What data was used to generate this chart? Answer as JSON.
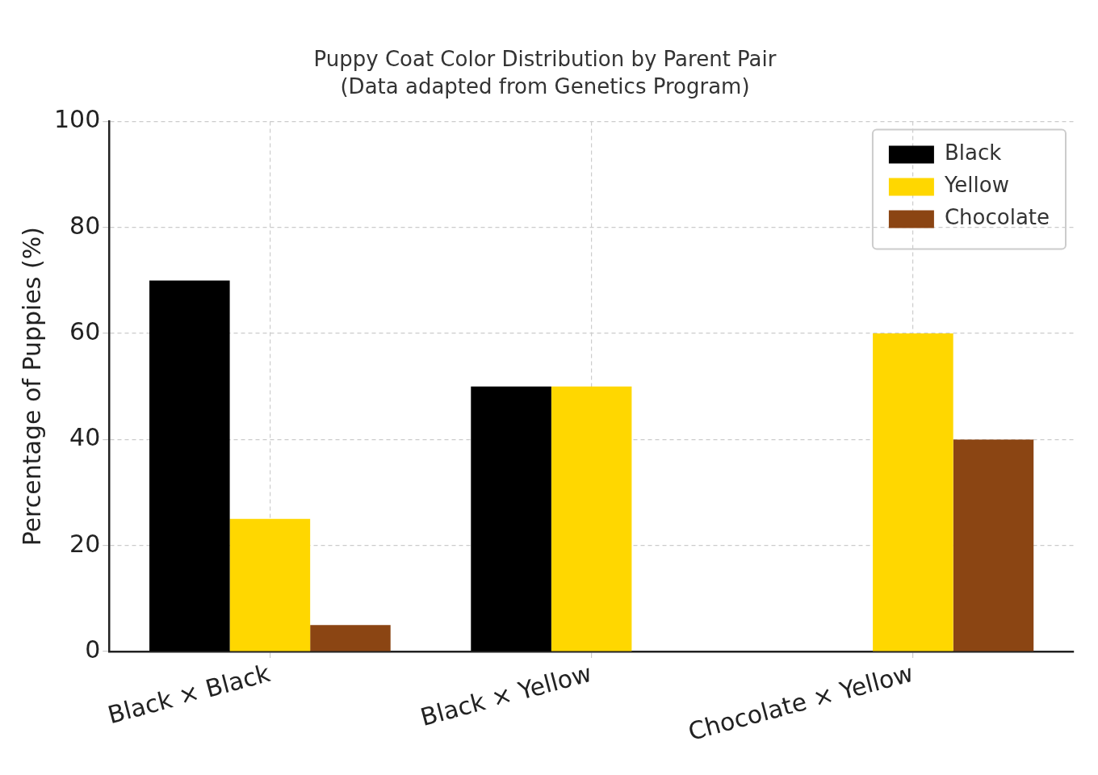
{
  "chart_data": {
    "type": "bar",
    "title": "Puppy Coat Color Distribution by Parent Pair",
    "subtitle": "(Data adapted from Genetics Program)",
    "ylabel": "Percentage of Puppies (%)",
    "categories": [
      "Black × Black",
      "Black × Yellow",
      "Chocolate × Yellow"
    ],
    "series": [
      {
        "name": "Black",
        "color": "#000000",
        "values": [
          70,
          50,
          0
        ]
      },
      {
        "name": "Yellow",
        "color": "#ffd700",
        "values": [
          25,
          50,
          60
        ]
      },
      {
        "name": "Chocolate",
        "color": "#8b4513",
        "values": [
          5,
          0,
          40
        ]
      }
    ],
    "ylim": [
      0,
      100
    ],
    "yticks": [
      0,
      20,
      40,
      60,
      80,
      100
    ],
    "grid": true,
    "legend": "top right"
  }
}
